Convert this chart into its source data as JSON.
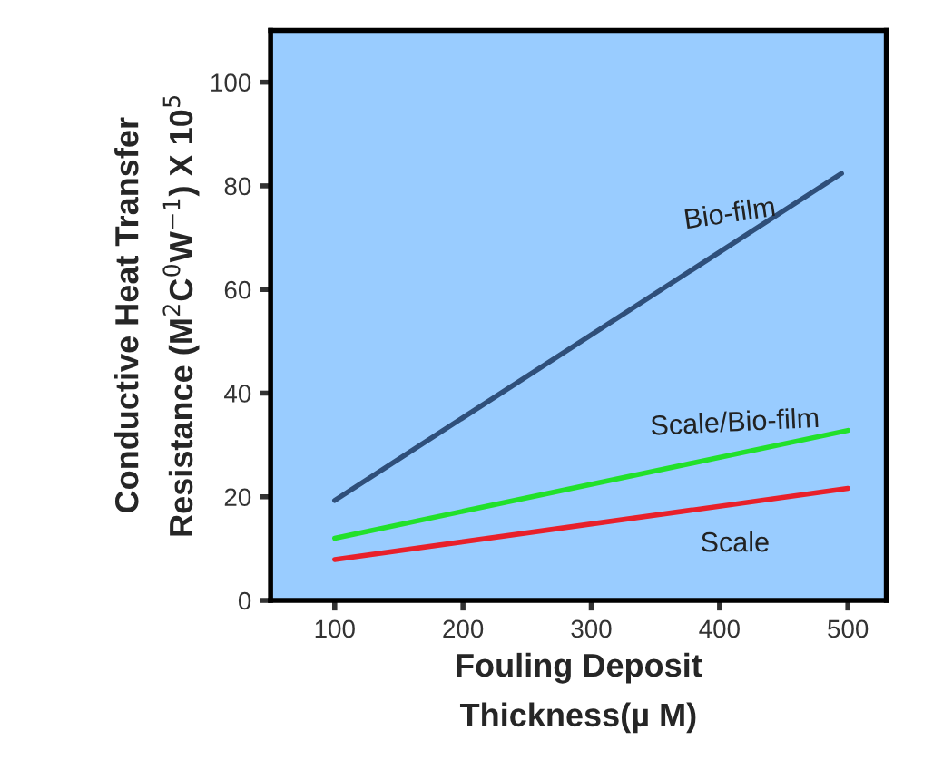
{
  "chart_data": {
    "type": "line",
    "xlabel": "Fouling Deposit\nThickness(µ M)",
    "ylabel": "Conductive Heat Transfer\nResistance (M$^{2}$C$^{0}$W$^{−1}$) X 10$^{5}$",
    "x": [
      100,
      500
    ],
    "series": [
      {
        "name": "Bio-film",
        "color": "#2f4f7a",
        "x": [
          100,
          495
        ],
        "values": [
          19.3,
          82.4
        ]
      },
      {
        "name": "Scale/Bio-film",
        "color": "#22e02a",
        "values": [
          12.0,
          32.8
        ]
      },
      {
        "name": "Scale",
        "color": "#e8202a",
        "values": [
          7.9,
          21.6
        ]
      }
    ],
    "xlim": [
      50,
      530
    ],
    "ylim": [
      0,
      110
    ],
    "xticks": [
      100,
      200,
      300,
      400,
      500
    ],
    "yticks": [
      0,
      20,
      40,
      60,
      80,
      100
    ],
    "grid": false,
    "legend": false,
    "marker": "none",
    "line_style": "solid"
  }
}
